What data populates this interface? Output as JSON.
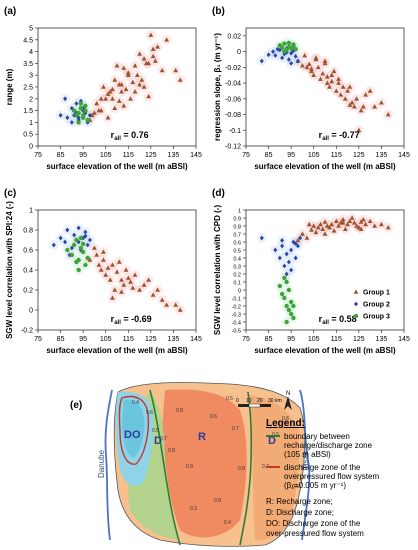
{
  "figure": {
    "legend": {
      "title": "Legend:",
      "boundary_desc_1": "boundary between",
      "boundary_desc_2": "recharge/discharge zone",
      "boundary_desc_3": "(105 m aBSl)",
      "discharge_desc_1": "discharge zone of the",
      "discharge_desc_2": "overpressured flow system",
      "discharge_desc_3": "(β₁=0.005 m yr⁻¹)",
      "zone_r": "R: Recharge zone;",
      "zone_d": "D: Discharge zone;",
      "zone_do_1": "DO: Discharge zone of the",
      "zone_do_2": "over-pressured flow system"
    },
    "map": {
      "panel_label": "(e)",
      "river_danube": "Danube",
      "river_tisza": "Tisza",
      "zone_do": "DO",
      "zone_d_left": "D",
      "zone_r": "R",
      "zone_d_right": "D",
      "scale_0": "0",
      "scale_10": "10",
      "scale_20": "20",
      "scale_30": "30",
      "scale_unit": "km",
      "north": "N",
      "contour_labels": [
        "0.4",
        "0.6",
        "0.5",
        "0.7",
        "0.8",
        "0.8",
        "0.9",
        "0.6",
        "0.5",
        "0.7",
        "0.8",
        "0.8",
        "0.7",
        "0.5",
        "0.6",
        "0.6",
        "0.4",
        "0.3"
      ],
      "colors": {
        "blue_zone": "#8fd3e8",
        "green_zone": "#a7d58b",
        "orange_zone": "#f4a25e",
        "red_zone": "#ee7a52",
        "boundary": "#2f7d32",
        "overpressured": "#c0392b"
      }
    },
    "group_colors": {
      "group1": "#a0522d",
      "group2": "#2c45a8",
      "group3": "#3da33a"
    }
  },
  "chart_data": [
    {
      "id": "a",
      "panel_label": "(a)",
      "type": "scatter",
      "xlabel": "surface elevation of the well (m aBSl)",
      "ylabel": "range (m)",
      "xlim": [
        75,
        145
      ],
      "ylim": [
        0,
        5
      ],
      "xticks": [
        "75",
        "85",
        "95",
        "105",
        "115",
        "125",
        "135",
        "145"
      ],
      "yticks": [
        "0",
        "0.5",
        "1",
        "1.5",
        "2",
        "2.5",
        "3",
        "3.5",
        "4",
        "4.5",
        "5"
      ],
      "annotation": "r",
      "annotation_sub": "all",
      "annotation_value": " = 0.76",
      "series": [
        {
          "name": "Group 1",
          "marker": "triangle",
          "color": "#a0522d",
          "x": [
            100,
            103,
            104,
            106,
            107,
            108,
            109,
            110,
            111,
            112,
            113,
            114,
            116,
            118,
            119,
            120,
            122,
            123,
            125,
            127,
            130,
            132,
            136,
            138,
            101,
            105,
            109,
            112,
            115,
            117,
            121,
            124,
            126,
            128,
            103,
            106,
            108,
            111,
            113,
            115,
            118,
            120,
            122,
            124,
            126,
            98,
            99,
            102
          ],
          "y": [
            1.4,
            2.0,
            2.5,
            1.2,
            2.3,
            2.0,
            2.8,
            3.4,
            2.6,
            2.3,
            3.3,
            2.4,
            2.0,
            3.4,
            3.0,
            2.6,
            3.7,
            3.5,
            4.7,
            3.6,
            3.2,
            4.5,
            3.2,
            2.8,
            1.8,
            2.0,
            1.6,
            2.6,
            3.0,
            2.7,
            2.8,
            3.5,
            4.1,
            4.2,
            1.5,
            2.2,
            2.4,
            1.9,
            1.7,
            3.1,
            2.3,
            3.9,
            2.5,
            2.1,
            3.8,
            1.1,
            1.3,
            1.5
          ]
        },
        {
          "name": "Group 2",
          "marker": "diamond",
          "color": "#2c45a8",
          "x": [
            85,
            88,
            90,
            91,
            92,
            93,
            94,
            95,
            96,
            97,
            90,
            93,
            95,
            98,
            87,
            92
          ],
          "y": [
            1.3,
            1.2,
            1.6,
            1.3,
            1.4,
            1.1,
            1.9,
            1.5,
            1.4,
            1.0,
            1.0,
            1.2,
            1.6,
            1.3,
            2.0,
            1.8
          ]
        },
        {
          "name": "Group 3",
          "marker": "circle",
          "color": "#3da33a",
          "x": [
            91,
            92,
            93,
            94,
            95,
            96,
            97,
            93,
            95,
            96,
            94
          ],
          "y": [
            1.5,
            1.3,
            1.4,
            1.6,
            1.2,
            1.7,
            1.1,
            1.0,
            1.3,
            1.5,
            1.8
          ]
        }
      ]
    },
    {
      "id": "b",
      "panel_label": "(b)",
      "type": "scatter",
      "xlabel": "surface elevation of the well (m aBSl)",
      "ylabel": "regression slope, β₁ (m yr⁻¹)",
      "xlim": [
        75,
        145
      ],
      "ylim": [
        -0.12,
        0.03
      ],
      "xticks": [
        "75",
        "85",
        "95",
        "105",
        "115",
        "125",
        "135",
        "145"
      ],
      "yticks": [
        "-0.12",
        "-0.1",
        "-0.08",
        "-0.06",
        "-0.04",
        "-0.02",
        "0",
        "0.02"
      ],
      "annotation": "r",
      "annotation_sub": "all",
      "annotation_value": " = -0.77",
      "series": [
        {
          "name": "Group 1",
          "marker": "triangle",
          "color": "#a0522d",
          "x": [
            98,
            100,
            102,
            103,
            104,
            105,
            106,
            107,
            108,
            109,
            110,
            111,
            112,
            113,
            114,
            115,
            116,
            117,
            118,
            119,
            120,
            121,
            122,
            123,
            124,
            125,
            126,
            128,
            130,
            132,
            135,
            138,
            101,
            106,
            111,
            116,
            121,
            127,
            104,
            110,
            113
          ],
          "y": [
            -0.012,
            -0.018,
            -0.02,
            -0.016,
            -0.025,
            -0.03,
            -0.01,
            -0.02,
            -0.035,
            -0.028,
            -0.015,
            -0.04,
            -0.045,
            -0.03,
            -0.025,
            -0.05,
            -0.04,
            -0.055,
            -0.045,
            -0.06,
            -0.05,
            -0.068,
            -0.065,
            -0.07,
            -0.06,
            -0.1,
            -0.075,
            -0.055,
            -0.05,
            -0.07,
            -0.065,
            -0.08,
            -0.005,
            -0.008,
            -0.032,
            -0.035,
            -0.045,
            -0.07,
            -0.022,
            -0.012,
            -0.038
          ]
        },
        {
          "name": "Group 2",
          "marker": "diamond",
          "color": "#2c45a8",
          "x": [
            82,
            85,
            87,
            88,
            90,
            91,
            92,
            93,
            94,
            95,
            96,
            97,
            98,
            89,
            93,
            95
          ],
          "y": [
            -0.012,
            -0.004,
            0.0,
            -0.005,
            0.002,
            -0.008,
            -0.003,
            0.004,
            -0.01,
            -0.002,
            0.001,
            -0.006,
            -0.012,
            0.003,
            -0.001,
            -0.015
          ]
        },
        {
          "name": "Group 3",
          "marker": "circle",
          "color": "#3da33a",
          "x": [
            90,
            91,
            92,
            93,
            94,
            95,
            96,
            97,
            92,
            94,
            96
          ],
          "y": [
            0.008,
            0.005,
            0.01,
            0.002,
            0.006,
            0.004,
            0.009,
            0.003,
            0.0,
            0.011,
            0.007
          ]
        }
      ]
    },
    {
      "id": "c",
      "panel_label": "(c)",
      "type": "scatter",
      "xlabel": "surface elevation of the well (m aBSl)",
      "ylabel": "SGW level correlation with SPI:24 (-)",
      "xlim": [
        75,
        145
      ],
      "ylim": [
        -0.2,
        1.0
      ],
      "xticks": [
        "75",
        "85",
        "95",
        "105",
        "115",
        "125",
        "135",
        "145"
      ],
      "yticks": [
        "-0.2",
        "0",
        "0.2",
        "0.4",
        "0.6",
        "0.8",
        "1"
      ],
      "annotation": "r",
      "annotation_sub": "all",
      "annotation_value": " = -0.69",
      "series": [
        {
          "name": "Group 1",
          "marker": "triangle",
          "color": "#a0522d",
          "x": [
            98,
            100,
            101,
            102,
            103,
            104,
            105,
            106,
            107,
            108,
            109,
            110,
            111,
            112,
            113,
            114,
            115,
            116,
            118,
            120,
            122,
            124,
            126,
            128,
            130,
            132,
            136,
            138,
            104,
            108,
            112,
            117
          ],
          "y": [
            0.5,
            0.62,
            0.55,
            0.45,
            0.4,
            0.5,
            0.35,
            0.42,
            0.3,
            0.45,
            0.2,
            0.38,
            0.48,
            0.3,
            0.25,
            0.4,
            0.32,
            0.28,
            0.35,
            0.2,
            0.25,
            0.3,
            0.15,
            0.2,
            0.1,
            0.05,
            0.05,
            0.0,
            0.58,
            0.12,
            0.18,
            0.22
          ]
        },
        {
          "name": "Group 2",
          "marker": "diamond",
          "color": "#2c45a8",
          "x": [
            82,
            85,
            87,
            88,
            90,
            91,
            92,
            93,
            94,
            95,
            96,
            97,
            98,
            89,
            93,
            96
          ],
          "y": [
            0.65,
            0.72,
            0.68,
            0.8,
            0.62,
            0.75,
            0.7,
            0.82,
            0.6,
            0.72,
            0.78,
            0.65,
            0.7,
            0.55,
            0.68,
            0.74
          ]
        },
        {
          "name": "Group 3",
          "marker": "circle",
          "color": "#3da33a",
          "x": [
            88,
            90,
            91,
            92,
            93,
            94,
            95,
            96,
            97,
            93,
            95,
            92,
            94
          ],
          "y": [
            0.6,
            0.55,
            0.65,
            0.7,
            0.5,
            0.62,
            0.58,
            0.45,
            0.52,
            0.4,
            0.66,
            0.48,
            0.72
          ]
        }
      ]
    },
    {
      "id": "d",
      "panel_label": "(d)",
      "type": "scatter",
      "xlabel": "surface elevation of the well (m aBSl)",
      "ylabel": "SGW level correlation with CPD (-)",
      "xlim": [
        75,
        145
      ],
      "ylim": [
        -0.5,
        1.0
      ],
      "xticks": [
        "75",
        "85",
        "95",
        "105",
        "115",
        "125",
        "135",
        "145"
      ],
      "yticks": [
        "-0.5",
        "-0.4",
        "-0.3",
        "-0.2",
        "-0.1",
        "0",
        "0.1",
        "0.2",
        "0.3",
        "0.4",
        "0.5",
        "0.6",
        "0.7",
        "0.8",
        "0.9",
        "1"
      ],
      "annotation": "r",
      "annotation_sub": "all",
      "annotation_value": " = 0.58",
      "legend": [
        "Group 1",
        "Group 2",
        "Group 3"
      ],
      "legend_position": "bottom-right",
      "series": [
        {
          "name": "Group 1",
          "marker": "triangle",
          "color": "#a0522d",
          "x": [
            98,
            100,
            102,
            104,
            105,
            106,
            107,
            108,
            109,
            110,
            111,
            112,
            113,
            114,
            115,
            116,
            117,
            118,
            119,
            120,
            121,
            122,
            123,
            124,
            125,
            126,
            127,
            128,
            130,
            132,
            135,
            138,
            103,
            110,
            118,
            126
          ],
          "y": [
            0.62,
            0.7,
            0.65,
            0.75,
            0.8,
            0.72,
            0.78,
            0.82,
            0.76,
            0.85,
            0.8,
            0.78,
            0.82,
            0.74,
            0.86,
            0.8,
            0.84,
            0.88,
            0.76,
            0.82,
            0.86,
            0.9,
            0.84,
            0.8,
            0.78,
            0.85,
            0.88,
            0.82,
            0.86,
            0.8,
            0.82,
            0.78,
            0.82,
            0.7,
            0.84,
            0.76
          ]
        },
        {
          "name": "Group 2",
          "marker": "diamond",
          "color": "#2c45a8",
          "x": [
            82,
            88,
            90,
            91,
            92,
            93,
            94,
            95,
            96,
            97,
            98,
            93,
            95,
            97,
            99,
            91
          ],
          "y": [
            0.65,
            0.5,
            0.4,
            0.55,
            0.3,
            0.45,
            0.35,
            0.5,
            0.6,
            0.4,
            0.55,
            0.2,
            0.25,
            0.58,
            0.65,
            0.62
          ]
        },
        {
          "name": "Group 3",
          "marker": "circle",
          "color": "#3da33a",
          "x": [
            90,
            91,
            92,
            93,
            93,
            94,
            94,
            95,
            95,
            96,
            96,
            93,
            92
          ],
          "y": [
            0.05,
            -0.05,
            -0.1,
            0.1,
            -0.2,
            0.0,
            -0.25,
            -0.15,
            -0.3,
            -0.2,
            -0.35,
            -0.4,
            0.15
          ]
        }
      ]
    }
  ]
}
